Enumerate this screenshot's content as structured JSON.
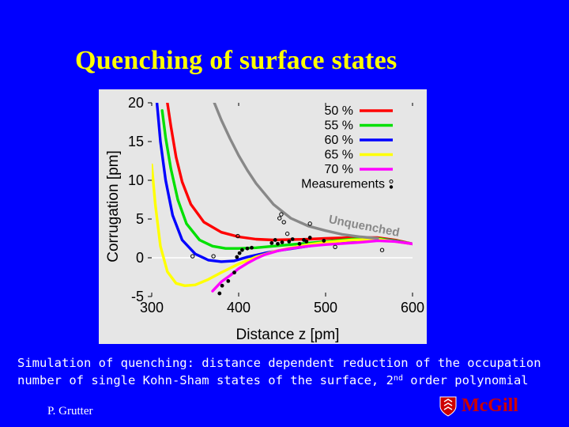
{
  "slide": {
    "title": "Quenching of surface states",
    "caption_before": "Simulation of quenching: distance dependent reduction of the occupation number of single Kohn-Sham states of the surface, 2",
    "caption_sup": "nd",
    "caption_after": " order polynomial",
    "author": "P. Grutter",
    "logo_text": "McGill"
  },
  "colors": {
    "background": "#0000ff",
    "title": "#ffff00",
    "plot_bg": "#e6e6e6",
    "logo": "#cc0000"
  },
  "chart_data": {
    "type": "line",
    "title": "",
    "xlabel": "Distance z [pm]",
    "ylabel": "Corrugation [pm]",
    "xlim": [
      300,
      600
    ],
    "ylim": [
      -5,
      20
    ],
    "xticks": [
      300,
      400,
      500,
      600
    ],
    "yticks": [
      -5,
      0,
      5,
      10,
      15,
      20
    ],
    "legend_position": "top-right",
    "series": [
      {
        "name": "50 %",
        "color": "#ff0000",
        "x": [
          318,
          322,
          328,
          335,
          345,
          360,
          380,
          400,
          420,
          440,
          460,
          480,
          500,
          530,
          560,
          580,
          600
        ],
        "y": [
          20,
          17,
          13,
          9.8,
          6.9,
          4.6,
          3.3,
          2.7,
          2.4,
          2.3,
          2.35,
          2.4,
          2.5,
          2.6,
          2.6,
          2.3,
          1.8
        ]
      },
      {
        "name": "55 %",
        "color": "#00e000",
        "x": [
          312,
          316,
          322,
          330,
          340,
          355,
          370,
          385,
          400,
          420,
          440,
          460,
          480,
          500,
          530,
          560,
          580,
          600
        ],
        "y": [
          19,
          15.5,
          11.5,
          7.5,
          4.4,
          2.3,
          1.5,
          1.2,
          1.2,
          1.3,
          1.5,
          1.7,
          1.9,
          2.1,
          2.4,
          2.5,
          2.2,
          1.8
        ]
      },
      {
        "name": "60 %",
        "color": "#0000ff",
        "x": [
          306,
          310,
          316,
          324,
          335,
          350,
          365,
          380,
          395,
          410,
          430,
          450,
          480,
          510,
          540,
          570,
          600
        ],
        "y": [
          20,
          15,
          10,
          5.5,
          2.3,
          0.5,
          -0.3,
          -0.5,
          -0.4,
          0.1,
          0.6,
          1.0,
          1.5,
          2.0,
          2.3,
          2.3,
          1.8
        ]
      },
      {
        "name": "65 %",
        "color": "#ffff00",
        "x": [
          300,
          304,
          310,
          318,
          328,
          338,
          350,
          365,
          380,
          400,
          420,
          440,
          460,
          480,
          500,
          530,
          560,
          600
        ],
        "y": [
          12,
          7,
          1.5,
          -1.8,
          -3.3,
          -3.6,
          -3.5,
          -2.8,
          -1.9,
          -0.8,
          0.1,
          0.8,
          1.3,
          1.7,
          2.0,
          2.3,
          2.4,
          1.8
        ]
      },
      {
        "name": "70 %",
        "color": "#ff00ff",
        "x": [
          370,
          380,
          390,
          400,
          410,
          420,
          430,
          445,
          460,
          480,
          500,
          520,
          540,
          560,
          580,
          600
        ],
        "y": [
          -4.3,
          -3.1,
          -2.3,
          -1.4,
          -0.7,
          -0.1,
          0.4,
          0.9,
          1.2,
          1.5,
          1.7,
          1.85,
          2.0,
          2.2,
          2.1,
          1.8
        ]
      },
      {
        "name": "Unquenched",
        "color": "#888888",
        "x": [
          372,
          380,
          390,
          400,
          410,
          420,
          440,
          460,
          480,
          500,
          520,
          540,
          560
        ],
        "y": [
          20,
          17.8,
          15.4,
          13.2,
          11.3,
          9.6,
          6.9,
          5.1,
          4.1,
          3.5,
          3.0,
          2.7,
          2.5
        ]
      }
    ],
    "measurements": {
      "name": "Measurements",
      "open_points": [
        {
          "x": 347,
          "y": 0.2
        },
        {
          "x": 371,
          "y": 0.2
        },
        {
          "x": 399,
          "y": 2.8
        },
        {
          "x": 447,
          "y": 5.1
        },
        {
          "x": 449,
          "y": 5.6
        },
        {
          "x": 452,
          "y": 4.6
        },
        {
          "x": 456,
          "y": 3.1
        },
        {
          "x": 482,
          "y": 4.4
        },
        {
          "x": 511,
          "y": 1.4
        },
        {
          "x": 565,
          "y": 1.0
        }
      ],
      "filled_points": [
        {
          "x": 378,
          "y": -4.6
        },
        {
          "x": 381,
          "y": -3.6
        },
        {
          "x": 388,
          "y": -3.0
        },
        {
          "x": 395,
          "y": -1.9
        },
        {
          "x": 398,
          "y": 0.1
        },
        {
          "x": 401,
          "y": 0.6
        },
        {
          "x": 404,
          "y": 1.0
        },
        {
          "x": 410,
          "y": 1.2
        },
        {
          "x": 415,
          "y": 1.3
        },
        {
          "x": 438,
          "y": 1.9
        },
        {
          "x": 442,
          "y": 2.3
        },
        {
          "x": 445,
          "y": 1.8
        },
        {
          "x": 450,
          "y": 2.0
        },
        {
          "x": 458,
          "y": 2.1
        },
        {
          "x": 462,
          "y": 2.4
        },
        {
          "x": 470,
          "y": 1.8
        },
        {
          "x": 475,
          "y": 2.3
        },
        {
          "x": 478,
          "y": 2.1
        },
        {
          "x": 482,
          "y": 2.6
        },
        {
          "x": 498,
          "y": 2.2
        }
      ]
    }
  }
}
